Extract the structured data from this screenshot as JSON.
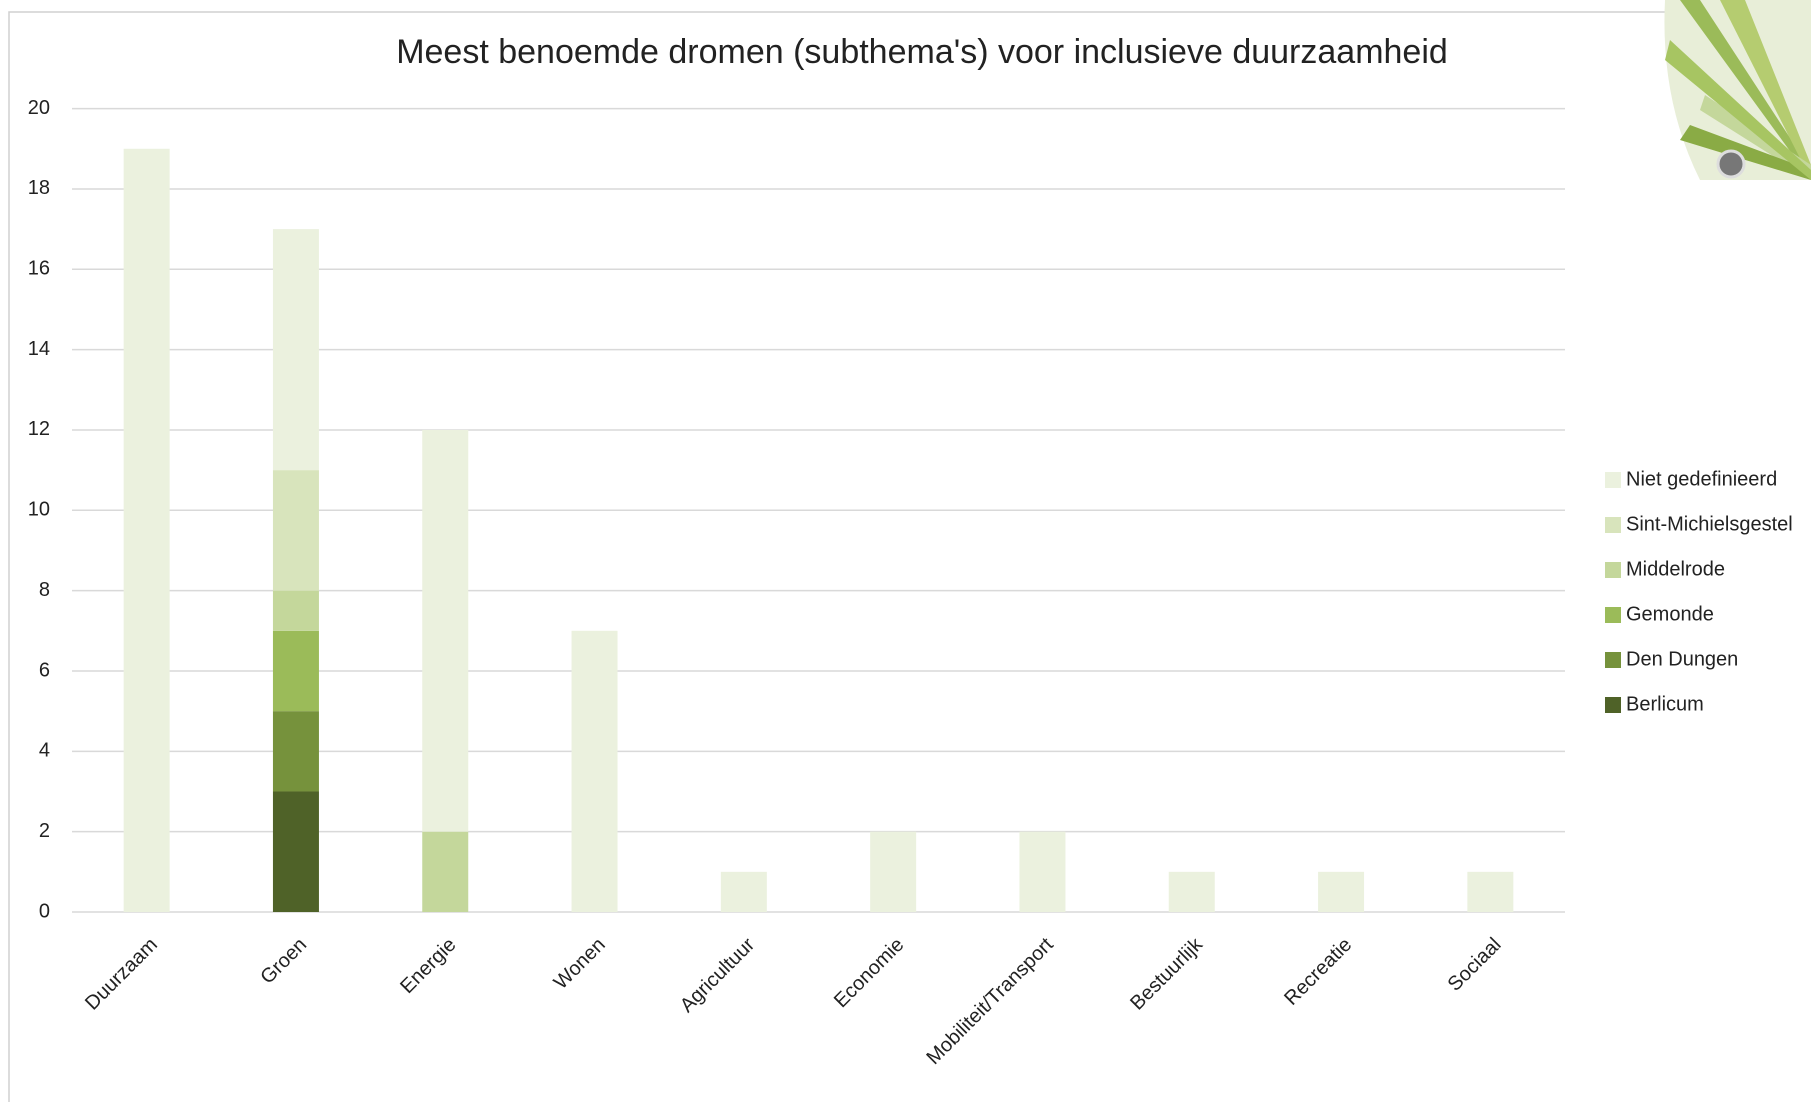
{
  "chart_data": {
    "type": "stacked_bar",
    "title": "Meest benoemde dromen (subthema's) voor inclusieve duurzaamheid",
    "categories": [
      "Duurzaam",
      "Groen",
      "Energie",
      "Wonen",
      "Agricultuur",
      "Economie",
      "Mobiliteit/Transport",
      "Bestuurlijk",
      "Recreatie",
      "Sociaal"
    ],
    "series": [
      {
        "name": "Berlicum",
        "color": "#4f6228",
        "values": [
          0,
          3,
          0,
          0,
          0,
          0,
          0,
          0,
          0,
          0
        ]
      },
      {
        "name": "Den Dungen",
        "color": "#76923c",
        "values": [
          0,
          2,
          0,
          0,
          0,
          0,
          0,
          0,
          0,
          0
        ]
      },
      {
        "name": "Gemonde",
        "color": "#9bbb59",
        "values": [
          0,
          2,
          0,
          0,
          0,
          0,
          0,
          0,
          0,
          0
        ]
      },
      {
        "name": "Middelrode",
        "color": "#c4d79b",
        "values": [
          0,
          1,
          2,
          0,
          0,
          0,
          0,
          0,
          0,
          0
        ]
      },
      {
        "name": "Sint-Michielsgestel",
        "color": "#d8e4bc",
        "values": [
          0,
          3,
          0,
          0,
          0,
          0,
          0,
          0,
          0,
          0
        ]
      },
      {
        "name": "Niet gedefinieerd",
        "color": "#ebf1de",
        "values": [
          19,
          6,
          10,
          7,
          1,
          2,
          2,
          1,
          1,
          1
        ]
      }
    ],
    "ylim": [
      0,
      20
    ],
    "yticks": [
      0,
      2,
      4,
      6,
      8,
      10,
      12,
      14,
      16,
      18,
      20
    ],
    "grid": true,
    "legend": "right"
  }
}
